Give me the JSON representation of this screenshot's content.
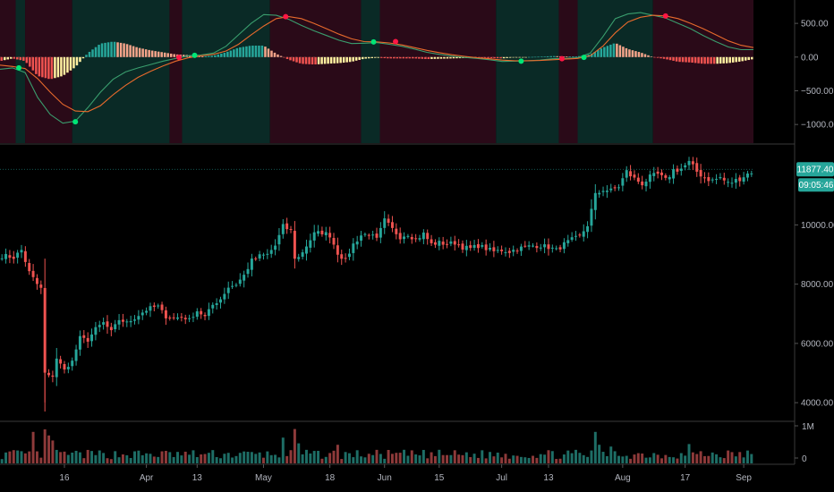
{
  "chart_data": [
    {
      "type": "line",
      "name_hint": "macd-panel",
      "ylim": [
        -1250,
        820
      ],
      "y_ticks": [
        {
          "value": 500,
          "label": "500.00"
        },
        {
          "value": 0,
          "label": "0.00"
        },
        {
          "value": -500,
          "label": "−500.00"
        },
        {
          "value": -1000,
          "label": "−1000.00"
        }
      ],
      "background_regions": [
        {
          "from": 0,
          "to": 5,
          "state": "bearish"
        },
        {
          "from": 5,
          "to": 8,
          "state": "bullish"
        },
        {
          "from": 8,
          "to": 23,
          "state": "bearish"
        },
        {
          "from": 23,
          "to": 54,
          "state": "bullish"
        },
        {
          "from": 54,
          "to": 58,
          "state": "bearish"
        },
        {
          "from": 58,
          "to": 86,
          "state": "bullish"
        },
        {
          "from": 86,
          "to": 115,
          "state": "bearish"
        },
        {
          "from": 115,
          "to": 121,
          "state": "bullish"
        },
        {
          "from": 121,
          "to": 158,
          "state": "bearish"
        },
        {
          "from": 158,
          "to": 178,
          "state": "bullish"
        },
        {
          "from": 178,
          "to": 184,
          "state": "bearish"
        },
        {
          "from": 184,
          "to": 208,
          "state": "bullish"
        },
        {
          "from": 208,
          "to": 240,
          "state": "bearish"
        }
      ],
      "macd_line": [
        [
          0,
          -180
        ],
        [
          4,
          -160
        ],
        [
          8,
          -230
        ],
        [
          12,
          -600
        ],
        [
          16,
          -850
        ],
        [
          20,
          -980
        ],
        [
          24,
          -950
        ],
        [
          28,
          -750
        ],
        [
          32,
          -520
        ],
        [
          36,
          -330
        ],
        [
          40,
          -220
        ],
        [
          44,
          -160
        ],
        [
          48,
          -110
        ],
        [
          52,
          -60
        ],
        [
          56,
          -20
        ],
        [
          60,
          20
        ],
        [
          64,
          30
        ],
        [
          68,
          60
        ],
        [
          72,
          160
        ],
        [
          76,
          330
        ],
        [
          80,
          500
        ],
        [
          84,
          630
        ],
        [
          88,
          620
        ],
        [
          92,
          560
        ],
        [
          96,
          470
        ],
        [
          100,
          390
        ],
        [
          104,
          320
        ],
        [
          108,
          250
        ],
        [
          112,
          200
        ],
        [
          116,
          205
        ],
        [
          120,
          215
        ],
        [
          124,
          190
        ],
        [
          128,
          160
        ],
        [
          132,
          120
        ],
        [
          136,
          70
        ],
        [
          140,
          40
        ],
        [
          144,
          15
        ],
        [
          148,
          -5
        ],
        [
          152,
          -20
        ],
        [
          156,
          -40
        ],
        [
          160,
          -65
        ],
        [
          164,
          -60
        ],
        [
          168,
          -55
        ],
        [
          172,
          -45
        ],
        [
          176,
          -25
        ],
        [
          180,
          -20
        ],
        [
          184,
          -10
        ],
        [
          188,
          60
        ],
        [
          192,
          300
        ],
        [
          196,
          570
        ],
        [
          200,
          640
        ],
        [
          204,
          660
        ],
        [
          208,
          620
        ],
        [
          212,
          580
        ],
        [
          216,
          500
        ],
        [
          220,
          420
        ],
        [
          224,
          320
        ],
        [
          228,
          230
        ],
        [
          232,
          150
        ],
        [
          236,
          110
        ],
        [
          240,
          110
        ]
      ],
      "signal_line": [
        [
          0,
          -120
        ],
        [
          4,
          -140
        ],
        [
          8,
          -170
        ],
        [
          12,
          -320
        ],
        [
          16,
          -520
        ],
        [
          20,
          -700
        ],
        [
          24,
          -800
        ],
        [
          28,
          -810
        ],
        [
          32,
          -720
        ],
        [
          36,
          -560
        ],
        [
          40,
          -420
        ],
        [
          44,
          -300
        ],
        [
          48,
          -210
        ],
        [
          52,
          -130
        ],
        [
          56,
          -60
        ],
        [
          60,
          -10
        ],
        [
          64,
          20
        ],
        [
          68,
          40
        ],
        [
          72,
          90
        ],
        [
          76,
          190
        ],
        [
          80,
          330
        ],
        [
          84,
          460
        ],
        [
          88,
          570
        ],
        [
          92,
          600
        ],
        [
          96,
          570
        ],
        [
          100,
          500
        ],
        [
          104,
          420
        ],
        [
          108,
          340
        ],
        [
          112,
          270
        ],
        [
          116,
          230
        ],
        [
          120,
          225
        ],
        [
          124,
          210
        ],
        [
          128,
          180
        ],
        [
          132,
          140
        ],
        [
          136,
          100
        ],
        [
          140,
          65
        ],
        [
          144,
          35
        ],
        [
          148,
          10
        ],
        [
          152,
          -10
        ],
        [
          156,
          -25
        ],
        [
          160,
          -45
        ],
        [
          164,
          -55
        ],
        [
          168,
          -55
        ],
        [
          172,
          -50
        ],
        [
          176,
          -40
        ],
        [
          180,
          -30
        ],
        [
          184,
          -20
        ],
        [
          188,
          20
        ],
        [
          192,
          160
        ],
        [
          196,
          360
        ],
        [
          200,
          520
        ],
        [
          204,
          590
        ],
        [
          208,
          620
        ],
        [
          212,
          610
        ],
        [
          216,
          570
        ],
        [
          220,
          500
        ],
        [
          224,
          420
        ],
        [
          228,
          330
        ],
        [
          232,
          240
        ],
        [
          236,
          175
        ],
        [
          240,
          140
        ]
      ],
      "crossovers": [
        {
          "x": 6,
          "value": -160,
          "kind": "bullish"
        },
        {
          "x": 24,
          "value": -960,
          "kind": "bullish"
        },
        {
          "x": 57,
          "value": -5,
          "kind": "bearish"
        },
        {
          "x": 62,
          "value": 25,
          "kind": "bullish"
        },
        {
          "x": 91,
          "value": 600,
          "kind": "bearish"
        },
        {
          "x": 119,
          "value": 225,
          "kind": "bullish"
        },
        {
          "x": 126,
          "value": 230,
          "kind": "bearish"
        },
        {
          "x": 166,
          "value": -60,
          "kind": "bullish"
        },
        {
          "x": 179,
          "value": -25,
          "kind": "bearish"
        },
        {
          "x": 186,
          "value": -5,
          "kind": "bullish"
        },
        {
          "x": 212,
          "value": 610,
          "kind": "bearish"
        }
      ],
      "colors": {
        "bull_bg": "#0a2a26",
        "bear_bg": "#2a0a18",
        "macd_line": "#3a9e6e",
        "signal_line": "#e86a2c",
        "hist_pos_strong": "#26a69a",
        "hist_pos_weak": "#f5a48a",
        "hist_neg_strong": "#ef5350",
        "hist_neg_weak": "#fff0a0",
        "dot_bull": "#00e676",
        "dot_bear": "#ff1744"
      }
    },
    {
      "type": "candlestick",
      "name_hint": "price-panel",
      "ylim": [
        3400,
        12700
      ],
      "y_ticks": [
        {
          "value": 10000,
          "label": "10000.00"
        },
        {
          "value": 8000,
          "label": "8000.00"
        },
        {
          "value": 6000,
          "label": "6000.00"
        },
        {
          "value": 4000,
          "label": "4000.00"
        }
      ],
      "x_ticks": [
        {
          "day": 16,
          "label": "16"
        },
        {
          "day": 37,
          "label": "Apr"
        },
        {
          "day": 50,
          "label": "13"
        },
        {
          "day": 67,
          "label": "May"
        },
        {
          "day": 84,
          "label": "18"
        },
        {
          "day": 98,
          "label": "Jun"
        },
        {
          "day": 112,
          "label": "15"
        },
        {
          "day": 128,
          "label": "Jul"
        },
        {
          "day": 140,
          "label": "13"
        },
        {
          "day": 159,
          "label": "Aug"
        },
        {
          "day": 175,
          "label": "17"
        },
        {
          "day": 190,
          "label": "Sep"
        }
      ],
      "anchor_closes": [
        [
          1,
          8950
        ],
        [
          3,
          8900
        ],
        [
          5,
          9150
        ],
        [
          7,
          8400
        ],
        [
          9,
          8000
        ],
        [
          10,
          7850
        ],
        [
          11,
          5000
        ],
        [
          12,
          4900
        ],
        [
          13,
          4900
        ],
        [
          14,
          5500
        ],
        [
          15,
          5300
        ],
        [
          16,
          5100
        ],
        [
          18,
          5400
        ],
        [
          20,
          6200
        ],
        [
          22,
          6100
        ],
        [
          24,
          6500
        ],
        [
          26,
          6700
        ],
        [
          28,
          6400
        ],
        [
          30,
          6800
        ],
        [
          32,
          6700
        ],
        [
          34,
          6850
        ],
        [
          36,
          7050
        ],
        [
          38,
          7200
        ],
        [
          40,
          7250
        ],
        [
          42,
          6900
        ],
        [
          44,
          6850
        ],
        [
          46,
          6900
        ],
        [
          48,
          6800
        ],
        [
          50,
          7100
        ],
        [
          52,
          6900
        ],
        [
          54,
          7300
        ],
        [
          56,
          7500
        ],
        [
          58,
          7900
        ],
        [
          60,
          8000
        ],
        [
          62,
          8300
        ],
        [
          64,
          8800
        ],
        [
          66,
          8950
        ],
        [
          68,
          9000
        ],
        [
          70,
          9300
        ],
        [
          72,
          9950
        ],
        [
          74,
          9800
        ],
        [
          75,
          8900
        ],
        [
          76,
          8900
        ],
        [
          78,
          9300
        ],
        [
          80,
          9700
        ],
        [
          82,
          9750
        ],
        [
          84,
          9650
        ],
        [
          86,
          9050
        ],
        [
          88,
          8800
        ],
        [
          90,
          9350
        ],
        [
          92,
          9650
        ],
        [
          94,
          9700
        ],
        [
          96,
          9500
        ],
        [
          98,
          10150
        ],
        [
          100,
          9850
        ],
        [
          102,
          9600
        ],
        [
          104,
          9700
        ],
        [
          106,
          9500
        ],
        [
          108,
          9700
        ],
        [
          110,
          9350
        ],
        [
          112,
          9400
        ],
        [
          114,
          9350
        ],
        [
          116,
          9400
        ],
        [
          118,
          9250
        ],
        [
          120,
          9200
        ],
        [
          122,
          9300
        ],
        [
          124,
          9200
        ],
        [
          126,
          9100
        ],
        [
          128,
          9150
        ],
        [
          130,
          9100
        ],
        [
          132,
          9200
        ],
        [
          134,
          9250
        ],
        [
          136,
          9300
        ],
        [
          138,
          9300
        ],
        [
          140,
          9250
        ],
        [
          142,
          9150
        ],
        [
          144,
          9350
        ],
        [
          146,
          9500
        ],
        [
          148,
          9600
        ],
        [
          150,
          10000
        ],
        [
          152,
          11000
        ],
        [
          154,
          11200
        ],
        [
          156,
          11150
        ],
        [
          158,
          11300
        ],
        [
          160,
          11800
        ],
        [
          162,
          11550
        ],
        [
          164,
          11400
        ],
        [
          166,
          11600
        ],
        [
          168,
          11700
        ],
        [
          170,
          11500
        ],
        [
          172,
          11850
        ],
        [
          174,
          11900
        ],
        [
          176,
          12100
        ],
        [
          178,
          11800
        ],
        [
          180,
          11600
        ],
        [
          182,
          11500
        ],
        [
          184,
          11600
        ],
        [
          186,
          11400
        ],
        [
          188,
          11500
        ],
        [
          190,
          11650
        ],
        [
          192,
          11800
        ]
      ],
      "current_price": {
        "label": "11877.40",
        "value": 11877.4
      },
      "countdown": "09:05:46",
      "colors": {
        "up": "#26a69a",
        "down": "#ef5350",
        "price_badge": "#26a69a",
        "countdown_badge": "#26a69a"
      }
    },
    {
      "type": "bar",
      "name_hint": "volume-panel",
      "y_ticks": [
        {
          "value": 1000000,
          "label": "1M"
        },
        {
          "value": 0,
          "label": "0"
        }
      ],
      "ylim": [
        0,
        1000000
      ],
      "volume_spikes": [
        {
          "day": 8,
          "value": 880000
        },
        {
          "day": 11,
          "value": 950000
        },
        {
          "day": 12,
          "value": 780000
        },
        {
          "day": 13,
          "value": 640000
        },
        {
          "day": 72,
          "value": 720000
        },
        {
          "day": 75,
          "value": 960000
        },
        {
          "day": 76,
          "value": 560000
        },
        {
          "day": 86,
          "value": 520000
        },
        {
          "day": 152,
          "value": 880000
        },
        {
          "day": 153,
          "value": 520000
        },
        {
          "day": 156,
          "value": 470000
        },
        {
          "day": 176,
          "value": 540000
        }
      ],
      "colors": {
        "up": "#1e6e66",
        "down": "#8e3a3a"
      }
    }
  ],
  "theme": {
    "background": "#000000",
    "divider": "#3a3a3a",
    "axis_text": "#b2b5be",
    "price_dotted_line": "#26a69a"
  }
}
